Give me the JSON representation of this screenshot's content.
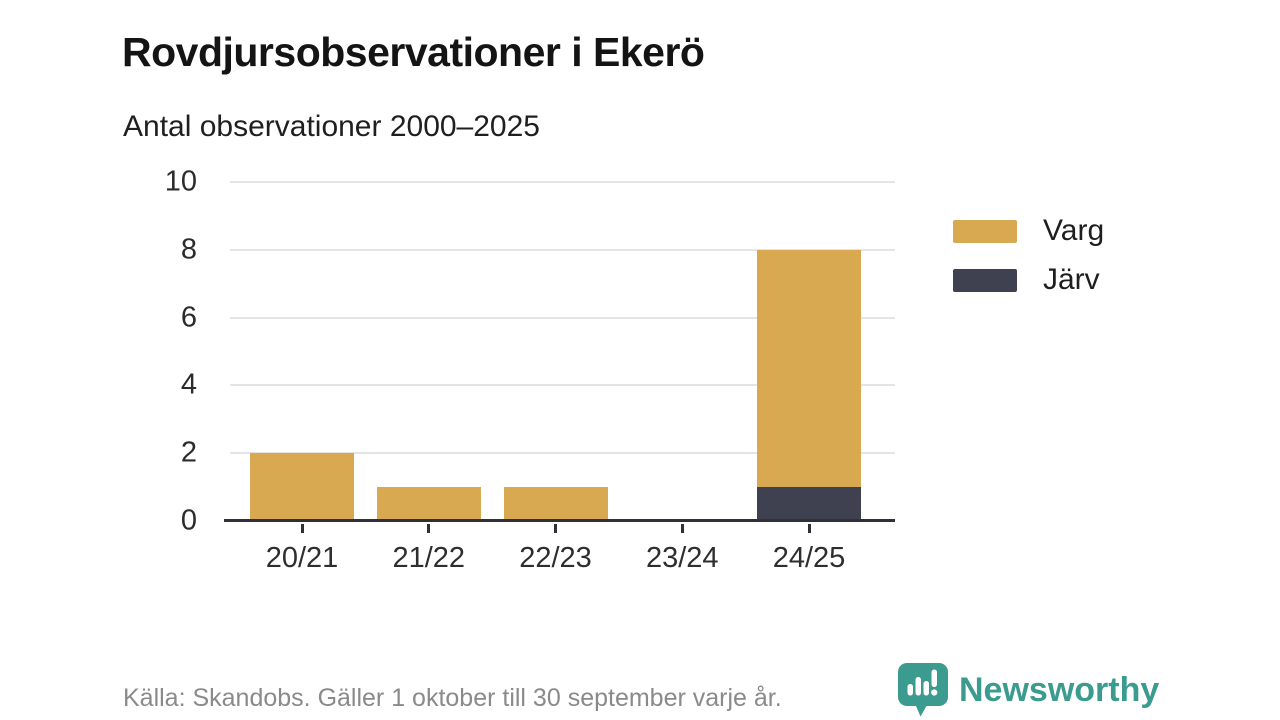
{
  "chart_data": {
    "type": "bar",
    "stacked": true,
    "title": "Rovdjursobservationer i Ekerö",
    "subtitle": "Antal observationer 2000–2025",
    "categories": [
      "20/21",
      "21/22",
      "22/23",
      "23/24",
      "24/25"
    ],
    "series": [
      {
        "name": "Varg",
        "color": "#d8a951",
        "values": [
          2,
          1,
          1,
          0,
          7
        ]
      },
      {
        "name": "Järv",
        "color": "#3f4050",
        "values": [
          0,
          0,
          0,
          0,
          1
        ]
      }
    ],
    "stack_order_bottom_to_top": [
      "Järv",
      "Varg"
    ],
    "totals": [
      2,
      1,
      1,
      0,
      8
    ],
    "ylim": [
      0,
      10
    ],
    "yticks": [
      0,
      2,
      4,
      6,
      8,
      10
    ],
    "grid": true,
    "legend_position": "right"
  },
  "footer": {
    "source": "Källa: Skandobs. Gäller 1 oktober till 30 september varje år."
  },
  "branding": {
    "name": "Newsworthy",
    "color": "#3a9b8e",
    "icon": "newsworthy-speech-bubble-chart-icon"
  }
}
